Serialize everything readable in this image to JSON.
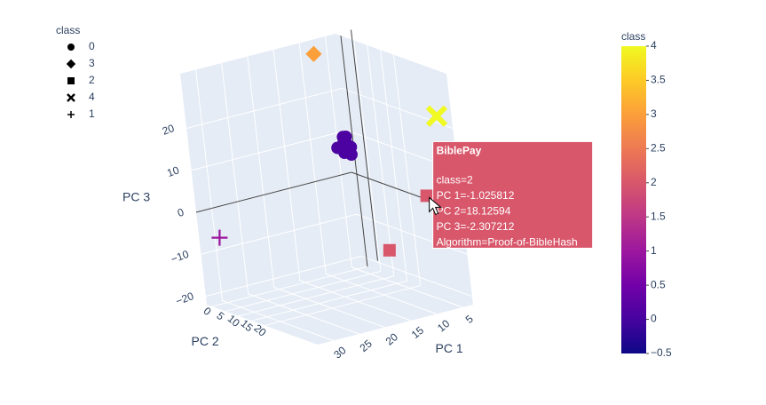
{
  "chart_data": {
    "type": "scatter3d",
    "legend_title": "class",
    "xaxis_title": "PC 1",
    "yaxis_title": "PC 2",
    "zaxis_title": "PC 3",
    "xlim": [
      3,
      33
    ],
    "ylim": [
      -2,
      40
    ],
    "zlim": [
      -22,
      33
    ],
    "xticks": [
      5,
      10,
      15,
      20,
      25,
      30
    ],
    "yticks": [
      0,
      5,
      10,
      15,
      20
    ],
    "zticks": [
      20,
      10,
      0,
      {
        "value": -10,
        "label": "−10"
      },
      {
        "value": -20,
        "label": "−20"
      }
    ],
    "grid": true,
    "series": [
      {
        "name": "0",
        "symbol": "circle",
        "color": "#4c02a1",
        "x": [
          5,
          4,
          6,
          5,
          7,
          4.5,
          6.5,
          5.5
        ],
        "y": [
          2,
          1,
          2.5,
          3,
          2,
          0.5,
          3.5,
          1.5
        ],
        "z": [
          8,
          7,
          9,
          6,
          8,
          9.5,
          7,
          10
        ]
      },
      {
        "name": "3",
        "symbol": "diamond",
        "color": "#fb9f3a",
        "x": [
          8
        ],
        "y": [
          -1
        ],
        "z": [
          30
        ]
      },
      {
        "name": "2",
        "symbol": "square",
        "color": "#d8576b",
        "x": [
          -1.025812,
          8
        ],
        "y": [
          18.12594,
          20
        ],
        "z": [
          -2.307212,
          -12
        ]
      },
      {
        "name": "4",
        "symbol": "x",
        "color": "#f0f921",
        "x": [
          1
        ],
        "y": [
          30
        ],
        "z": [
          20
        ]
      },
      {
        "name": "1",
        "symbol": "cross",
        "color": "#9c179e",
        "x": [
          32
        ],
        "y": [
          4
        ],
        "z": [
          -5
        ]
      }
    ],
    "colorbar": {
      "title": "class",
      "clim": [
        -0.5,
        4
      ],
      "colorscale": [
        "#0d0887",
        "#46039f",
        "#7201a8",
        "#9c179e",
        "#bd3786",
        "#d8576b",
        "#ed7953",
        "#fb9f3a",
        "#fdca26",
        "#f0f921"
      ],
      "ticks": [
        {
          "value": -0.5,
          "label": "−0.5"
        },
        0,
        0.5,
        1,
        1.5,
        2,
        2.5,
        3,
        3.5,
        4
      ]
    },
    "hover": {
      "title": "BiblePay",
      "lines": [
        "class=2",
        "PC 1=-1.025812",
        "PC 2=18.12594",
        "PC 3=-2.307212",
        "Algorithm=Proof-of-BibleHash"
      ]
    }
  }
}
